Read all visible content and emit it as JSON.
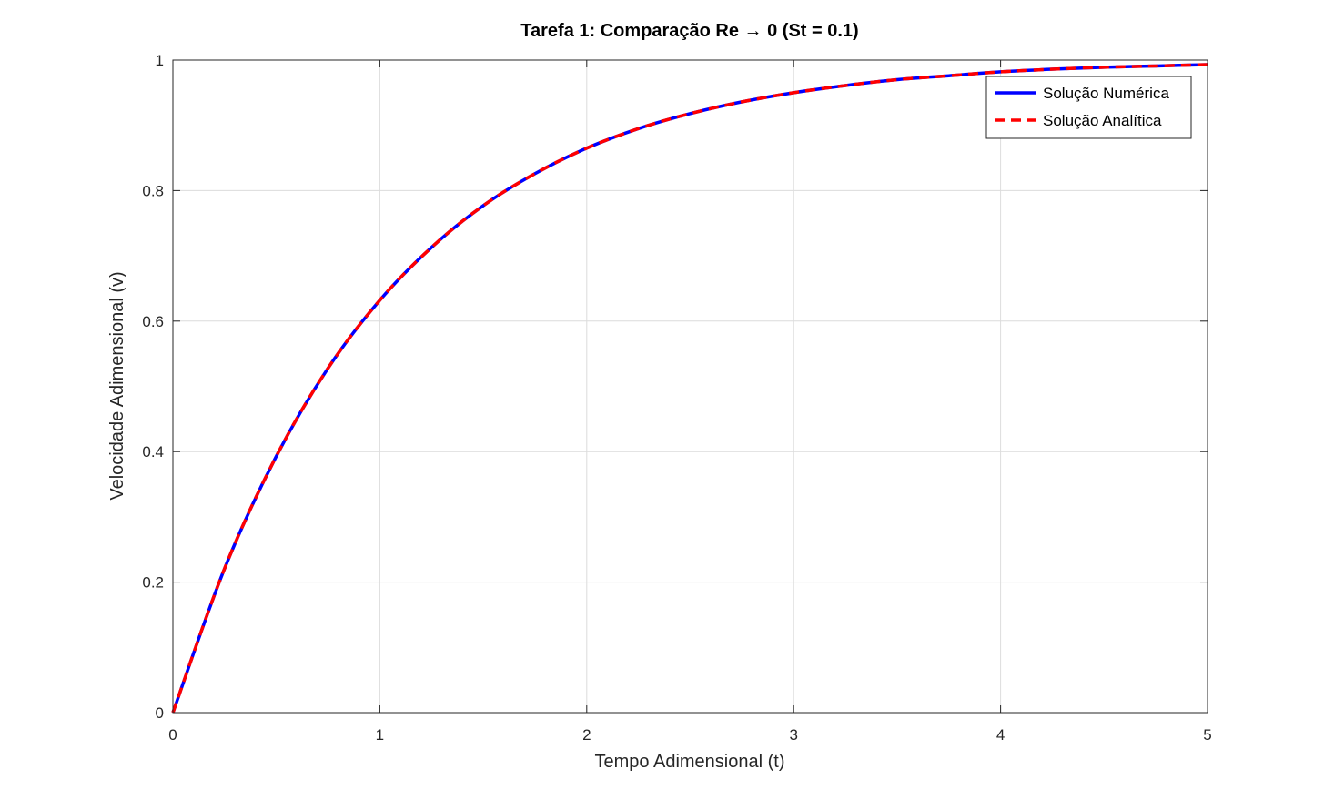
{
  "chart_data": {
    "type": "line",
    "title": "Tarefa 1: Comparação Re → 0 (St = 0.1)",
    "xlabel": "Tempo Adimensional (t)",
    "ylabel": "Velocidade Adimensional (v)",
    "xlim": [
      0,
      5
    ],
    "ylim": [
      0,
      1
    ],
    "grid": true,
    "legend_location": "top-right",
    "xticks": [
      0,
      1,
      2,
      3,
      4,
      5
    ],
    "xtick_labels": [
      "0",
      "1",
      "2",
      "3",
      "4",
      "5"
    ],
    "yticks": [
      0,
      0.2,
      0.4,
      0.6,
      0.8,
      1
    ],
    "ytick_labels": [
      "0",
      "0.2",
      "0.4",
      "0.6",
      "0.8",
      "1"
    ],
    "x": [
      0,
      0.25,
      0.5,
      0.75,
      1,
      1.25,
      1.5,
      1.75,
      2,
      2.25,
      2.5,
      2.75,
      3,
      3.25,
      3.5,
      3.75,
      4,
      4.25,
      4.5,
      4.75,
      5
    ],
    "series": [
      {
        "name": "Solução Numérica",
        "color": "#0000ff",
        "style": "solid",
        "values": [
          0,
          0.221,
          0.393,
          0.528,
          0.632,
          0.713,
          0.777,
          0.826,
          0.865,
          0.895,
          0.918,
          0.936,
          0.95,
          0.961,
          0.97,
          0.976,
          0.982,
          0.986,
          0.989,
          0.991,
          0.993
        ]
      },
      {
        "name": "Solução Analítica",
        "color": "#ff0000",
        "style": "dashed",
        "values": [
          0,
          0.221,
          0.393,
          0.528,
          0.632,
          0.713,
          0.777,
          0.826,
          0.865,
          0.895,
          0.918,
          0.936,
          0.95,
          0.961,
          0.97,
          0.976,
          0.982,
          0.986,
          0.989,
          0.991,
          0.993
        ]
      }
    ]
  }
}
